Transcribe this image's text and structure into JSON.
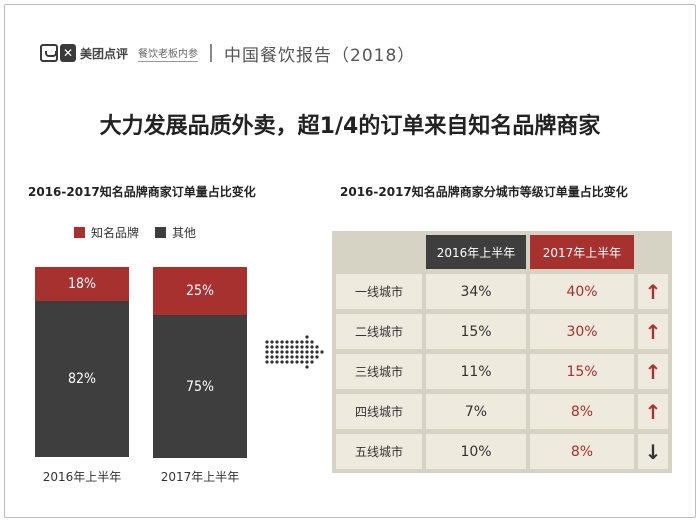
{
  "header": {
    "brand": "美团点评",
    "sub_brand": "餐饮老板内参",
    "report_title": "中国餐饮报告（2018）",
    "fork_icon_glyph": "✕"
  },
  "main_title": "大力发展品质外卖，超1/4的订单来自知名品牌商家",
  "left_chart": {
    "title": "2016-2017知名品牌商家订单量占比变化",
    "legend": [
      {
        "name": "知名品牌",
        "color": "#a6312e"
      },
      {
        "name": "其他",
        "color": "#3e3e3e"
      }
    ]
  },
  "right_table": {
    "title": "2016-2017知名品牌商家分城市等级订单量占比变化",
    "headers": [
      "2016年上半年",
      "2017年上半年"
    ],
    "rows": [
      {
        "city": "一线城市",
        "v2016": "34%",
        "v2017": "40%",
        "trend": "up"
      },
      {
        "city": "二线城市",
        "v2016": "15%",
        "v2017": "30%",
        "trend": "up"
      },
      {
        "city": "三线城市",
        "v2016": "11%",
        "v2017": "15%",
        "trend": "up"
      },
      {
        "city": "四线城市",
        "v2016": "7%",
        "v2017": "8%",
        "trend": "up"
      },
      {
        "city": "五线城市",
        "v2016": "10%",
        "v2017": "8%",
        "trend": "down"
      }
    ],
    "colors": {
      "up": "#a6312e",
      "down": "#333333",
      "header_2016": "#3e3e3e",
      "header_2017": "#a6312e"
    }
  },
  "chart_data": [
    {
      "type": "bar",
      "stacked": true,
      "title": "2016-2017知名品牌商家订单量占比变化",
      "categories": [
        "2016年上半年",
        "2017年上半年"
      ],
      "series": [
        {
          "name": "知名品牌",
          "values": [
            18,
            25
          ],
          "labels": [
            "18%",
            "25%"
          ],
          "color": "#a6312e"
        },
        {
          "name": "其他",
          "values": [
            82,
            75
          ],
          "labels": [
            "82%",
            "75%"
          ],
          "color": "#3e3e3e"
        }
      ],
      "xlabel": "",
      "ylabel": "",
      "ylim": [
        0,
        100
      ],
      "legend": "top-left",
      "grid": false
    },
    {
      "type": "table",
      "title": "2016-2017知名品牌商家分城市等级订单量占比变化",
      "columns": [
        "",
        "2016年上半年",
        "2017年上半年",
        ""
      ],
      "rows": [
        [
          "一线城市",
          "34%",
          "40%",
          "up"
        ],
        [
          "二线城市",
          "15%",
          "30%",
          "up"
        ],
        [
          "三线城市",
          "11%",
          "15%",
          "up"
        ],
        [
          "四线城市",
          "7%",
          "8%",
          "up"
        ],
        [
          "五线城市",
          "10%",
          "8%",
          "down"
        ]
      ]
    }
  ]
}
